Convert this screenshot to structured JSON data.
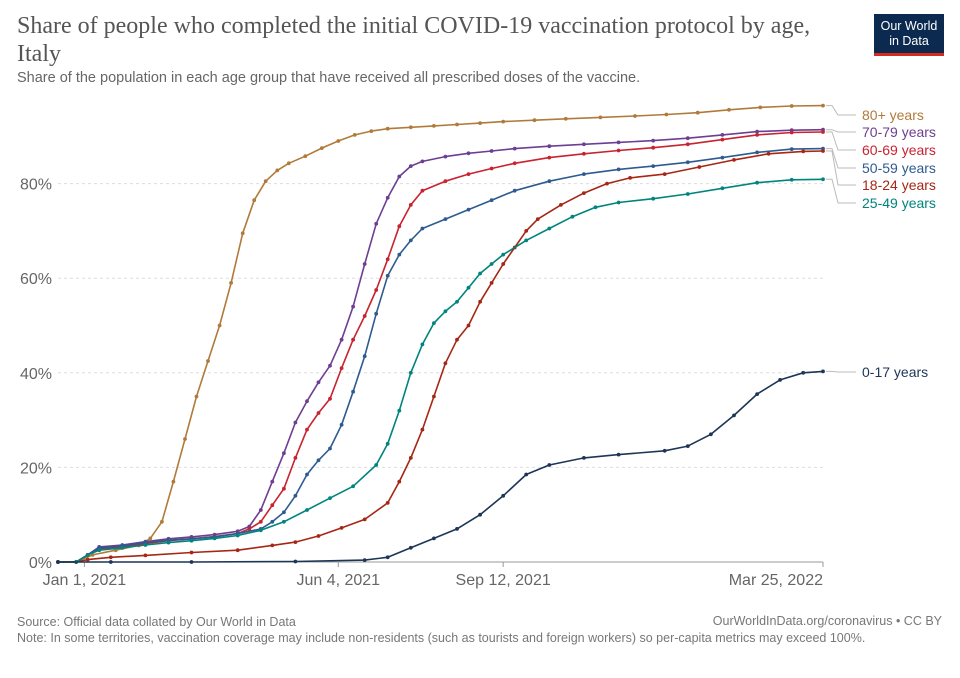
{
  "header": {
    "title": "Share of people who completed the initial COVID-19 vaccination protocol by age, Italy",
    "subtitle": "Share of the population in each age group that have received all prescribed doses of the vaccine.",
    "logo_line1": "Our World",
    "logo_line2": "in Data"
  },
  "footer": {
    "source": "Source: Official data collated by Our World in Data",
    "credit": "OurWorldInData.org/coronavirus • CC BY",
    "note": "Note: In some territories, vaccination coverage may include non-residents (such as tourists and foreign workers) so per-capita metrics may exceed 100%."
  },
  "colors": {
    "logo_bg": "#0c2a4f",
    "logo_accent": "#d42b21",
    "grid": "#dddddd"
  },
  "chart_data": {
    "type": "line",
    "x_type": "date",
    "xlim": [
      "2020-12-16",
      "2022-03-25"
    ],
    "ylim": [
      0,
      100
    ],
    "x_ticks": [
      {
        "date": "2021-01-01",
        "label": "Jan 1, 2021"
      },
      {
        "date": "2021-06-04",
        "label": "Jun 4, 2021"
      },
      {
        "date": "2021-09-12",
        "label": "Sep 12, 2021"
      },
      {
        "date": "2022-03-25",
        "label": "Mar 25, 2022"
      }
    ],
    "y_ticks": [
      {
        "value": 0,
        "label": "0%"
      },
      {
        "value": 20,
        "label": "20%"
      },
      {
        "value": 40,
        "label": "40%"
      },
      {
        "value": 60,
        "label": "60%"
      },
      {
        "value": 80,
        "label": "80%"
      }
    ],
    "grid": true,
    "legend": "right, labels at line ends",
    "series": [
      {
        "name": "80+ years",
        "color": "#b07b3a",
        "points": [
          [
            "2020-12-16",
            0
          ],
          [
            "2020-12-27",
            0
          ],
          [
            "2021-01-06",
            1.5
          ],
          [
            "2021-01-20",
            2.5
          ],
          [
            "2021-02-03",
            3.5
          ],
          [
            "2021-02-10",
            5
          ],
          [
            "2021-02-17",
            8.5
          ],
          [
            "2021-02-24",
            17
          ],
          [
            "2021-03-03",
            26
          ],
          [
            "2021-03-10",
            35
          ],
          [
            "2021-03-17",
            42.5
          ],
          [
            "2021-03-24",
            50
          ],
          [
            "2021-03-31",
            59
          ],
          [
            "2021-04-07",
            69.5
          ],
          [
            "2021-04-14",
            76.5
          ],
          [
            "2021-04-21",
            80.5
          ],
          [
            "2021-04-28",
            82.8
          ],
          [
            "2021-05-05",
            84.3
          ],
          [
            "2021-05-15",
            85.8
          ],
          [
            "2021-05-25",
            87.5
          ],
          [
            "2021-06-04",
            89
          ],
          [
            "2021-06-14",
            90.3
          ],
          [
            "2021-06-24",
            91.1
          ],
          [
            "2021-07-04",
            91.6
          ],
          [
            "2021-07-18",
            91.9
          ],
          [
            "2021-08-01",
            92.2
          ],
          [
            "2021-08-15",
            92.5
          ],
          [
            "2021-08-29",
            92.8
          ],
          [
            "2021-09-12",
            93.1
          ],
          [
            "2021-10-01",
            93.4
          ],
          [
            "2021-10-20",
            93.7
          ],
          [
            "2021-11-10",
            94
          ],
          [
            "2021-12-01",
            94.3
          ],
          [
            "2021-12-20",
            94.6
          ],
          [
            "2022-01-08",
            95
          ],
          [
            "2022-01-27",
            95.6
          ],
          [
            "2022-02-15",
            96.1
          ],
          [
            "2022-03-06",
            96.4
          ],
          [
            "2022-03-25",
            96.5
          ]
        ]
      },
      {
        "name": "70-79 years",
        "color": "#6d3e91",
        "points": [
          [
            "2020-12-16",
            0
          ],
          [
            "2020-12-27",
            0
          ],
          [
            "2021-01-03",
            1.5
          ],
          [
            "2021-01-10",
            3.2
          ],
          [
            "2021-01-24",
            3.6
          ],
          [
            "2021-02-07",
            4.3
          ],
          [
            "2021-02-21",
            4.9
          ],
          [
            "2021-03-07",
            5.3
          ],
          [
            "2021-03-21",
            5.8
          ],
          [
            "2021-04-04",
            6.5
          ],
          [
            "2021-04-11",
            7.5
          ],
          [
            "2021-04-18",
            11
          ],
          [
            "2021-04-25",
            17
          ],
          [
            "2021-05-02",
            23
          ],
          [
            "2021-05-09",
            29.5
          ],
          [
            "2021-05-16",
            34
          ],
          [
            "2021-05-23",
            38
          ],
          [
            "2021-05-30",
            41.5
          ],
          [
            "2021-06-06",
            47
          ],
          [
            "2021-06-13",
            54
          ],
          [
            "2021-06-20",
            63
          ],
          [
            "2021-06-27",
            71.5
          ],
          [
            "2021-07-04",
            77
          ],
          [
            "2021-07-11",
            81.5
          ],
          [
            "2021-07-18",
            83.7
          ],
          [
            "2021-07-25",
            84.7
          ],
          [
            "2021-08-08",
            85.7
          ],
          [
            "2021-08-22",
            86.4
          ],
          [
            "2021-09-05",
            86.9
          ],
          [
            "2021-09-19",
            87.4
          ],
          [
            "2021-10-10",
            87.9
          ],
          [
            "2021-10-31",
            88.3
          ],
          [
            "2021-11-21",
            88.7
          ],
          [
            "2021-12-12",
            89.1
          ],
          [
            "2022-01-02",
            89.6
          ],
          [
            "2022-01-23",
            90.3
          ],
          [
            "2022-02-13",
            91
          ],
          [
            "2022-03-06",
            91.3
          ],
          [
            "2022-03-25",
            91.4
          ]
        ]
      },
      {
        "name": "60-69 years",
        "color": "#c8232f",
        "points": [
          [
            "2020-12-16",
            0
          ],
          [
            "2020-12-27",
            0
          ],
          [
            "2021-01-03",
            1.5
          ],
          [
            "2021-01-10",
            2.8
          ],
          [
            "2021-01-24",
            3.2
          ],
          [
            "2021-02-07",
            3.9
          ],
          [
            "2021-02-21",
            4.5
          ],
          [
            "2021-03-07",
            4.9
          ],
          [
            "2021-03-21",
            5.4
          ],
          [
            "2021-04-04",
            6
          ],
          [
            "2021-04-11",
            7
          ],
          [
            "2021-04-18",
            8.5
          ],
          [
            "2021-04-25",
            12
          ],
          [
            "2021-05-02",
            15.5
          ],
          [
            "2021-05-09",
            22
          ],
          [
            "2021-05-16",
            28
          ],
          [
            "2021-05-23",
            31.5
          ],
          [
            "2021-05-30",
            34.5
          ],
          [
            "2021-06-06",
            41
          ],
          [
            "2021-06-13",
            47
          ],
          [
            "2021-06-20",
            52
          ],
          [
            "2021-06-27",
            57.5
          ],
          [
            "2021-07-04",
            64
          ],
          [
            "2021-07-11",
            71
          ],
          [
            "2021-07-18",
            75.5
          ],
          [
            "2021-07-25",
            78.5
          ],
          [
            "2021-08-08",
            80.5
          ],
          [
            "2021-08-22",
            82
          ],
          [
            "2021-09-05",
            83.2
          ],
          [
            "2021-09-19",
            84.3
          ],
          [
            "2021-10-10",
            85.5
          ],
          [
            "2021-10-31",
            86.3
          ],
          [
            "2021-11-21",
            87
          ],
          [
            "2021-12-12",
            87.6
          ],
          [
            "2022-01-02",
            88.3
          ],
          [
            "2022-01-23",
            89.3
          ],
          [
            "2022-02-13",
            90.3
          ],
          [
            "2022-03-06",
            90.8
          ],
          [
            "2022-03-25",
            90.9
          ]
        ]
      },
      {
        "name": "50-59 years",
        "color": "#2e5b8f",
        "points": [
          [
            "2020-12-16",
            0
          ],
          [
            "2020-12-27",
            0
          ],
          [
            "2021-01-03",
            1.5
          ],
          [
            "2021-01-10",
            3
          ],
          [
            "2021-01-24",
            3.4
          ],
          [
            "2021-02-07",
            4.1
          ],
          [
            "2021-02-21",
            4.6
          ],
          [
            "2021-03-07",
            4.9
          ],
          [
            "2021-03-21",
            5.3
          ],
          [
            "2021-04-04",
            6
          ],
          [
            "2021-04-18",
            7
          ],
          [
            "2021-04-25",
            8.5
          ],
          [
            "2021-05-02",
            10.5
          ],
          [
            "2021-05-09",
            14
          ],
          [
            "2021-05-16",
            18.5
          ],
          [
            "2021-05-23",
            21.5
          ],
          [
            "2021-05-30",
            24
          ],
          [
            "2021-06-06",
            29
          ],
          [
            "2021-06-13",
            36
          ],
          [
            "2021-06-20",
            43.5
          ],
          [
            "2021-06-27",
            52.5
          ],
          [
            "2021-07-04",
            60.5
          ],
          [
            "2021-07-11",
            65
          ],
          [
            "2021-07-18",
            68
          ],
          [
            "2021-07-25",
            70.5
          ],
          [
            "2021-08-08",
            72.5
          ],
          [
            "2021-08-22",
            74.5
          ],
          [
            "2021-09-05",
            76.5
          ],
          [
            "2021-09-19",
            78.5
          ],
          [
            "2021-10-10",
            80.5
          ],
          [
            "2021-10-31",
            82
          ],
          [
            "2021-11-21",
            83
          ],
          [
            "2021-12-12",
            83.7
          ],
          [
            "2022-01-02",
            84.5
          ],
          [
            "2022-01-23",
            85.5
          ],
          [
            "2022-02-13",
            86.6
          ],
          [
            "2022-03-06",
            87.3
          ],
          [
            "2022-03-25",
            87.4
          ]
        ]
      },
      {
        "name": "18-24 years",
        "color": "#a52714",
        "points": [
          [
            "2020-12-16",
            0
          ],
          [
            "2020-12-27",
            0
          ],
          [
            "2021-01-03",
            0.5
          ],
          [
            "2021-01-17",
            1
          ],
          [
            "2021-02-07",
            1.4
          ],
          [
            "2021-03-07",
            2
          ],
          [
            "2021-04-04",
            2.5
          ],
          [
            "2021-04-25",
            3.5
          ],
          [
            "2021-05-09",
            4.2
          ],
          [
            "2021-05-23",
            5.5
          ],
          [
            "2021-06-06",
            7.2
          ],
          [
            "2021-06-20",
            9
          ],
          [
            "2021-07-04",
            12.5
          ],
          [
            "2021-07-11",
            17
          ],
          [
            "2021-07-18",
            22
          ],
          [
            "2021-07-25",
            28
          ],
          [
            "2021-08-01",
            35
          ],
          [
            "2021-08-08",
            42
          ],
          [
            "2021-08-15",
            47
          ],
          [
            "2021-08-22",
            50
          ],
          [
            "2021-08-29",
            55
          ],
          [
            "2021-09-05",
            59
          ],
          [
            "2021-09-12",
            63
          ],
          [
            "2021-09-19",
            66.5
          ],
          [
            "2021-09-26",
            70
          ],
          [
            "2021-10-03",
            72.5
          ],
          [
            "2021-10-17",
            75.5
          ],
          [
            "2021-10-31",
            78
          ],
          [
            "2021-11-14",
            80
          ],
          [
            "2021-11-28",
            81.2
          ],
          [
            "2021-12-19",
            82
          ],
          [
            "2022-01-09",
            83.5
          ],
          [
            "2022-01-30",
            85
          ],
          [
            "2022-02-20",
            86.3
          ],
          [
            "2022-03-13",
            86.8
          ],
          [
            "2022-03-25",
            86.9
          ]
        ]
      },
      {
        "name": "25-49 years",
        "color": "#00847e",
        "points": [
          [
            "2020-12-16",
            0
          ],
          [
            "2020-12-27",
            0
          ],
          [
            "2021-01-03",
            1.5
          ],
          [
            "2021-01-10",
            2.5
          ],
          [
            "2021-01-24",
            3
          ],
          [
            "2021-02-07",
            3.6
          ],
          [
            "2021-02-21",
            4.1
          ],
          [
            "2021-03-07",
            4.5
          ],
          [
            "2021-03-21",
            5
          ],
          [
            "2021-04-04",
            5.6
          ],
          [
            "2021-04-18",
            6.7
          ],
          [
            "2021-05-02",
            8.5
          ],
          [
            "2021-05-16",
            11
          ],
          [
            "2021-05-30",
            13.5
          ],
          [
            "2021-06-13",
            16
          ],
          [
            "2021-06-27",
            20.5
          ],
          [
            "2021-07-04",
            25
          ],
          [
            "2021-07-11",
            32
          ],
          [
            "2021-07-18",
            40
          ],
          [
            "2021-07-25",
            46
          ],
          [
            "2021-08-01",
            50.5
          ],
          [
            "2021-08-08",
            53
          ],
          [
            "2021-08-15",
            55
          ],
          [
            "2021-08-22",
            58
          ],
          [
            "2021-08-29",
            61
          ],
          [
            "2021-09-05",
            63
          ],
          [
            "2021-09-12",
            65
          ],
          [
            "2021-09-26",
            68
          ],
          [
            "2021-10-10",
            70.5
          ],
          [
            "2021-10-24",
            73
          ],
          [
            "2021-11-07",
            75
          ],
          [
            "2021-11-21",
            76
          ],
          [
            "2021-12-12",
            76.8
          ],
          [
            "2022-01-02",
            77.8
          ],
          [
            "2022-01-23",
            79
          ],
          [
            "2022-02-13",
            80.2
          ],
          [
            "2022-03-06",
            80.8
          ],
          [
            "2022-03-25",
            80.9
          ]
        ]
      },
      {
        "name": "0-17 years",
        "color": "#1d3557",
        "points": [
          [
            "2020-12-16",
            0
          ],
          [
            "2021-01-17",
            0
          ],
          [
            "2021-03-07",
            0
          ],
          [
            "2021-05-09",
            0.1
          ],
          [
            "2021-06-20",
            0.4
          ],
          [
            "2021-07-04",
            1
          ],
          [
            "2021-07-18",
            3
          ],
          [
            "2021-08-01",
            5
          ],
          [
            "2021-08-15",
            7
          ],
          [
            "2021-08-29",
            10
          ],
          [
            "2021-09-12",
            14
          ],
          [
            "2021-09-26",
            18.5
          ],
          [
            "2021-10-10",
            20.5
          ],
          [
            "2021-10-31",
            22
          ],
          [
            "2021-11-21",
            22.7
          ],
          [
            "2021-12-19",
            23.5
          ],
          [
            "2022-01-02",
            24.5
          ],
          [
            "2022-01-16",
            27
          ],
          [
            "2022-01-30",
            31
          ],
          [
            "2022-02-13",
            35.5
          ],
          [
            "2022-02-27",
            38.5
          ],
          [
            "2022-03-13",
            40
          ],
          [
            "2022-03-25",
            40.3
          ]
        ]
      }
    ]
  }
}
